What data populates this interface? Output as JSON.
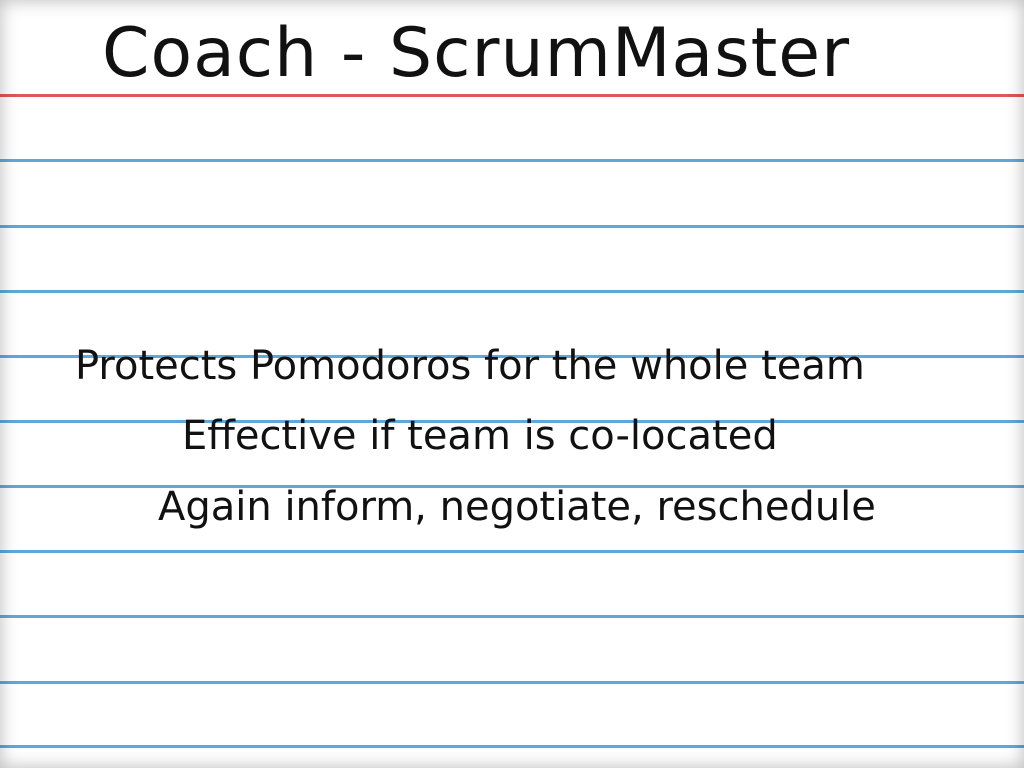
{
  "title": "Coach - ScrumMaster",
  "lines": [
    "Protects Pomodoros for the whole team",
    "Effective if team is co-located",
    "Again inform, negotiate, reschedule"
  ],
  "colors": {
    "ink": "#111111",
    "margin_line": "#e0565a",
    "ruled_line": "#5ea8dc",
    "paper": "#ffffff"
  }
}
